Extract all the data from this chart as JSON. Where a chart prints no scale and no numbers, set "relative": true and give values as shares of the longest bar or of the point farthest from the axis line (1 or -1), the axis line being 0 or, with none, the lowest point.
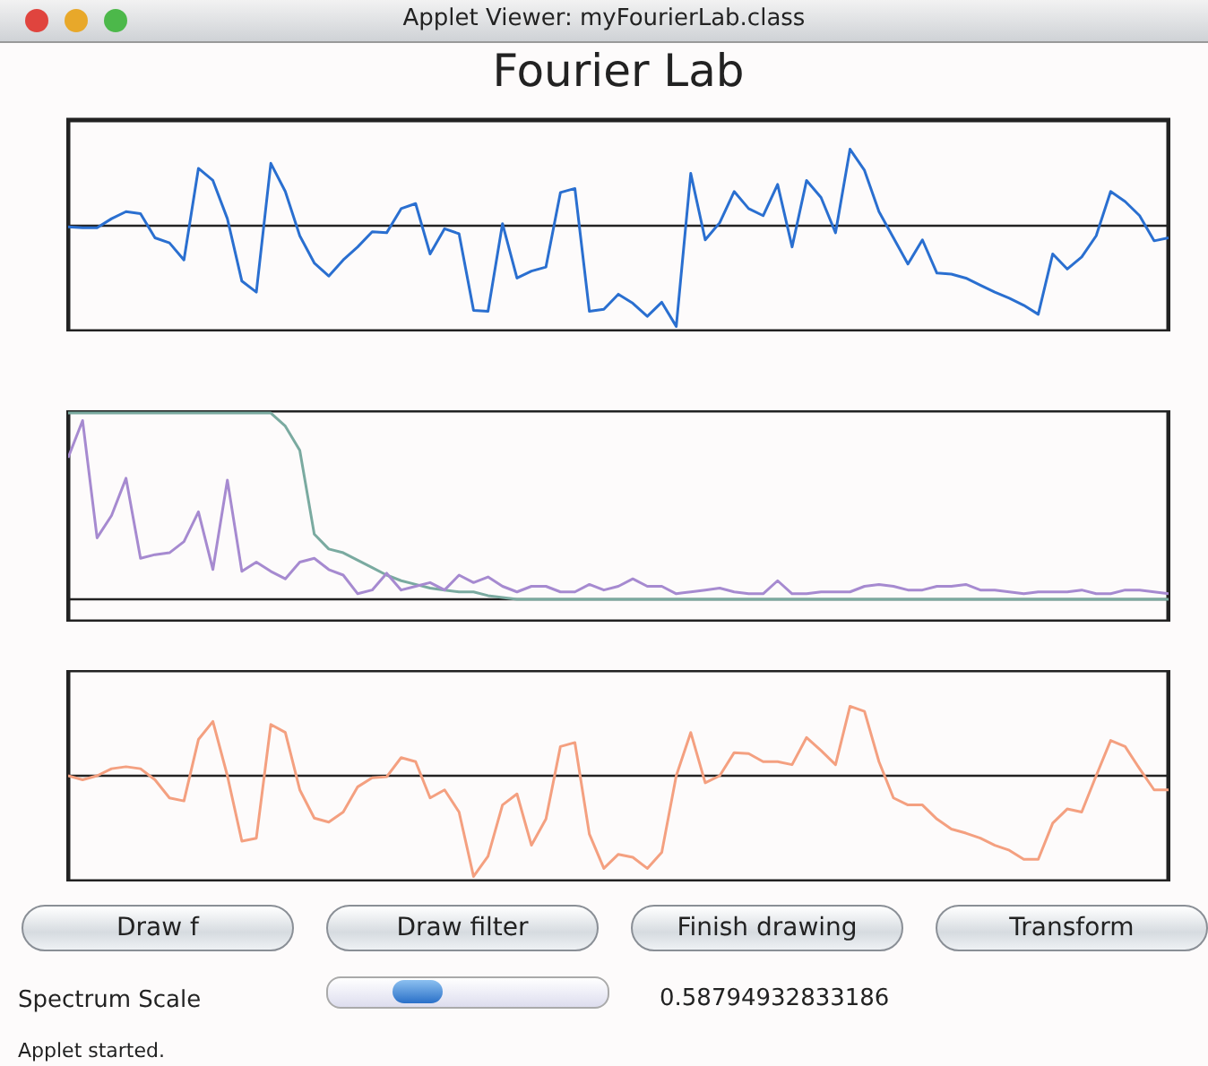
{
  "chart_data": [
    {
      "type": "other",
      "annotations": [
        "Applet Viewer: myFourierLab.class"
      ]
    },
    {
      "type": "line",
      "title": "Fourier Lab",
      "relative": true,
      "categories": [
        null,
        null,
        null,
        null,
        null,
        null,
        null,
        null,
        null,
        null,
        null,
        null,
        null,
        null,
        null,
        null,
        null,
        null,
        null,
        null,
        null,
        null,
        null,
        null,
        null,
        null,
        null,
        null,
        null,
        null,
        null,
        null,
        null,
        null,
        null,
        null,
        null,
        null,
        null,
        null,
        null,
        null,
        null,
        null,
        null,
        null,
        null,
        null,
        null,
        null,
        null,
        null,
        null,
        null,
        null,
        null,
        null,
        null,
        null,
        null,
        null,
        null,
        null,
        null,
        null,
        null,
        null,
        null,
        null,
        null,
        null,
        null,
        null,
        null,
        null,
        null,
        null
      ],
      "series": [
        {
          "color": "#2a6fd0",
          "values": [
            -0.01,
            -0.02,
            -0.02,
            0.07,
            0.14,
            0.12,
            -0.12,
            -0.17,
            -0.34,
            0.57,
            0.45,
            0.07,
            -0.55,
            -0.66,
            0.62,
            0.34,
            -0.1,
            -0.37,
            -0.5,
            -0.34,
            -0.21,
            -0.06,
            -0.07,
            0.17,
            0.22,
            -0.28,
            -0.03,
            -0.08,
            -0.84,
            -0.85,
            0.02,
            -0.52,
            -0.45,
            -0.41,
            0.33,
            0.37,
            -0.85,
            -0.83,
            -0.68,
            -0.77,
            -0.9,
            -0.76,
            -1,
            0.52,
            -0.14,
            0.03,
            0.34,
            0.17,
            0.1,
            0.41,
            -0.21,
            0.45,
            0.28,
            -0.07,
            0.76,
            0.55,
            0.14,
            -0.12,
            -0.38,
            -0.14,
            -0.47,
            -0.48,
            -0.52,
            -0.59,
            -0.66,
            -0.72,
            -0.79,
            -0.88,
            -0.28,
            -0.43,
            -0.31,
            -0.1,
            0.34,
            0.24,
            0.1,
            -0.15,
            -0.12
          ]
        }
      ]
    },
    {
      "type": "line",
      "relative": true,
      "categories": [
        null,
        null,
        null,
        null,
        null,
        null,
        null,
        null,
        null,
        null,
        null,
        null,
        null,
        null,
        null,
        null,
        null,
        null,
        null,
        null,
        null,
        null,
        null,
        null,
        null,
        null,
        null,
        null,
        null,
        null,
        null,
        null,
        null,
        null,
        null,
        null,
        null,
        null,
        null,
        null,
        null,
        null,
        null,
        null,
        null,
        null,
        null,
        null,
        null,
        null,
        null,
        null,
        null,
        null,
        null,
        null,
        null,
        null,
        null,
        null,
        null,
        null,
        null,
        null,
        null,
        null,
        null,
        null,
        null,
        null,
        null,
        null,
        null,
        null,
        null,
        null,
        null
      ],
      "series": [
        {
          "color": "#7aaaa0",
          "values": [
            1,
            1,
            1,
            1,
            1,
            1,
            1,
            1,
            1,
            1,
            1,
            1,
            1,
            1,
            1,
            0.93,
            0.8,
            0.35,
            0.27,
            0.25,
            0.21,
            0.17,
            0.13,
            0.1,
            0.08,
            0.06,
            0.05,
            0.04,
            0.04,
            0.02,
            0.01,
            0,
            0,
            0,
            0,
            0,
            0,
            0,
            0,
            0,
            0,
            0,
            0,
            0,
            0,
            0,
            0,
            0,
            0,
            0,
            0,
            0,
            0,
            0,
            0,
            0,
            0,
            0,
            0,
            0,
            0,
            0,
            0,
            0,
            0,
            0,
            0,
            0,
            0,
            0,
            0,
            0,
            0,
            0,
            0,
            0,
            0
          ]
        },
        {
          "color": "#a68ad0",
          "values": [
            0.76,
            0.96,
            0.33,
            0.45,
            0.65,
            0.22,
            0.24,
            0.25,
            0.31,
            0.47,
            0.16,
            0.64,
            0.15,
            0.2,
            0.15,
            0.11,
            0.2,
            0.22,
            0.16,
            0.13,
            0.03,
            0.05,
            0.14,
            0.05,
            0.07,
            0.09,
            0.05,
            0.13,
            0.09,
            0.12,
            0.07,
            0.04,
            0.07,
            0.07,
            0.04,
            0.04,
            0.08,
            0.05,
            0.07,
            0.11,
            0.07,
            0.07,
            0.03,
            0.04,
            0.05,
            0.06,
            0.04,
            0.03,
            0.03,
            0.1,
            0.03,
            0.03,
            0.04,
            0.04,
            0.04,
            0.07,
            0.08,
            0.07,
            0.05,
            0.05,
            0.07,
            0.07,
            0.08,
            0.05,
            0.05,
            0.04,
            0.03,
            0.04,
            0.04,
            0.04,
            0.05,
            0.03,
            0.03,
            0.05,
            0.05,
            0.04,
            0.03
          ]
        }
      ]
    },
    {
      "type": "line",
      "relative": true,
      "categories": [
        null,
        null,
        null,
        null,
        null,
        null,
        null,
        null,
        null,
        null,
        null,
        null,
        null,
        null,
        null,
        null,
        null,
        null,
        null,
        null,
        null,
        null,
        null,
        null,
        null,
        null,
        null,
        null,
        null,
        null,
        null,
        null,
        null,
        null,
        null,
        null,
        null,
        null,
        null,
        null,
        null,
        null,
        null,
        null,
        null,
        null,
        null,
        null,
        null,
        null,
        null,
        null,
        null,
        null,
        null,
        null,
        null,
        null,
        null,
        null,
        null,
        null,
        null,
        null,
        null,
        null,
        null,
        null,
        null,
        null,
        null,
        null,
        null,
        null,
        null,
        null,
        null
      ],
      "series": [
        {
          "color": "#f4a080",
          "values": [
            0,
            -0.04,
            0,
            0.07,
            0.09,
            0.07,
            -0.04,
            -0.22,
            -0.25,
            0.36,
            0.54,
            0,
            -0.65,
            -0.62,
            0.51,
            0.43,
            -0.14,
            -0.42,
            -0.46,
            -0.36,
            -0.11,
            -0.02,
            -0.01,
            0.18,
            0.14,
            -0.22,
            -0.14,
            -0.36,
            -1,
            -0.8,
            -0.29,
            -0.18,
            -0.69,
            -0.43,
            0.29,
            0.33,
            -0.58,
            -0.92,
            -0.78,
            -0.81,
            -0.92,
            -0.76,
            0,
            0.43,
            -0.07,
            0,
            0.23,
            0.22,
            0.14,
            0.14,
            0.11,
            0.38,
            0.25,
            0.11,
            0.69,
            0.64,
            0.14,
            -0.22,
            -0.29,
            -0.29,
            -0.43,
            -0.53,
            -0.57,
            -0.62,
            -0.69,
            -0.74,
            -0.83,
            -0.83,
            -0.47,
            -0.33,
            -0.36,
            0,
            0.35,
            0.29,
            0.07,
            -0.14,
            -0.14
          ]
        }
      ]
    },
    {
      "type": "other",
      "annotations": [
        "Draw f",
        "Draw filter",
        "Finish drawing",
        "Transform",
        "Spectrum Scale",
        "0.58794932833186",
        "Applet started."
      ]
    }
  ]
}
